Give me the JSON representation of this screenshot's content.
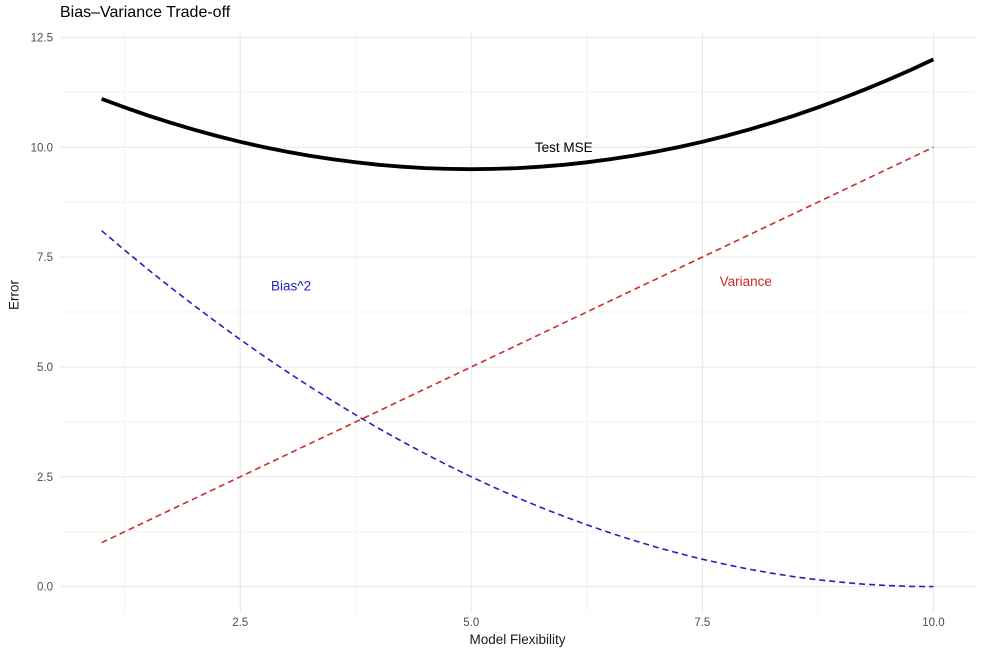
{
  "title": "Bias–Variance Trade-off",
  "chart_data": {
    "type": "line",
    "title": "Bias–Variance Trade-off",
    "xlabel": "Model Flexibility",
    "ylabel": "Error",
    "xlim": [
      0.55,
      10.45
    ],
    "ylim": [
      -0.6,
      12.6
    ],
    "grid": "on",
    "legend_position": "none",
    "colors": {
      "test_mse": "#000000",
      "bias2": "#2222c0",
      "variance": "#d02a2a"
    },
    "xticks": {
      "values": [
        2.5,
        5.0,
        7.5,
        10.0
      ],
      "labels": [
        "2.5",
        "5.0",
        "7.5",
        "10.0"
      ]
    },
    "yticks": {
      "values": [
        0.0,
        2.5,
        5.0,
        7.5,
        10.0,
        12.5
      ],
      "labels": [
        "0.0",
        "2.5",
        "5.0",
        "7.5",
        "10.0",
        "12.5"
      ]
    },
    "x_minor_gridlines": [
      1.25,
      3.75,
      6.25,
      8.75
    ],
    "y_minor_gridlines": [
      1.25,
      3.75,
      6.25,
      8.75,
      11.25
    ],
    "x": [
      1,
      1.25,
      1.5,
      1.75,
      2,
      2.25,
      2.5,
      2.75,
      3,
      3.25,
      3.5,
      3.75,
      4,
      4.25,
      4.5,
      4.75,
      5,
      5.25,
      5.5,
      5.75,
      6,
      6.25,
      6.5,
      6.75,
      7,
      7.25,
      7.5,
      7.75,
      8,
      8.25,
      8.5,
      8.75,
      9,
      9.25,
      9.5,
      9.75,
      10
    ],
    "series": [
      {
        "name": "Bias^2",
        "color": "#2222c0",
        "style": "dashed",
        "width": 1.6,
        "values": [
          8.1,
          7.6563,
          7.225,
          6.8063,
          6.4,
          6.0063,
          5.625,
          5.2563,
          4.9,
          4.5563,
          4.225,
          3.9063,
          3.6,
          3.3063,
          3.025,
          2.7563,
          2.5,
          2.2563,
          2.025,
          1.8063,
          1.6,
          1.4063,
          1.225,
          1.0563,
          0.9,
          0.7563,
          0.625,
          0.5063,
          0.4,
          0.3063,
          0.225,
          0.1563,
          0.1,
          0.0563,
          0.025,
          0.0063,
          0
        ]
      },
      {
        "name": "Variance",
        "color": "#d02a2a",
        "style": "dashed",
        "width": 1.6,
        "values": [
          1,
          1.25,
          1.5,
          1.75,
          2,
          2.25,
          2.5,
          2.75,
          3,
          3.25,
          3.5,
          3.75,
          4,
          4.25,
          4.5,
          4.75,
          5,
          5.25,
          5.5,
          5.75,
          6,
          6.25,
          6.5,
          6.75,
          7,
          7.25,
          7.5,
          7.75,
          8,
          8.25,
          8.5,
          8.75,
          9,
          9.25,
          9.5,
          9.75,
          10
        ]
      },
      {
        "name": "Test MSE",
        "color": "#000000",
        "style": "solid",
        "width": 3.8,
        "values": [
          11.1,
          10.9063,
          10.725,
          10.5563,
          10.4,
          10.2563,
          10.125,
          10.0063,
          9.9,
          9.8063,
          9.725,
          9.6563,
          9.6,
          9.5563,
          9.525,
          9.5063,
          9.5,
          9.5063,
          9.525,
          9.5563,
          9.6,
          9.6563,
          9.725,
          9.8063,
          9.9,
          10.0063,
          10.125,
          10.2563,
          10.4,
          10.5563,
          10.725,
          10.9063,
          11.1,
          11.3063,
          11.525,
          11.7563,
          12
        ]
      }
    ],
    "annotations": [
      {
        "text": "Test MSE",
        "x": 6.0,
        "y": 10.0,
        "color": "#000000"
      },
      {
        "text": "Bias^2",
        "x": 3.05,
        "y": 6.85,
        "color": "#2222c0"
      },
      {
        "text": "Variance",
        "x": 7.97,
        "y": 6.95,
        "color": "#d02a2a"
      }
    ]
  }
}
